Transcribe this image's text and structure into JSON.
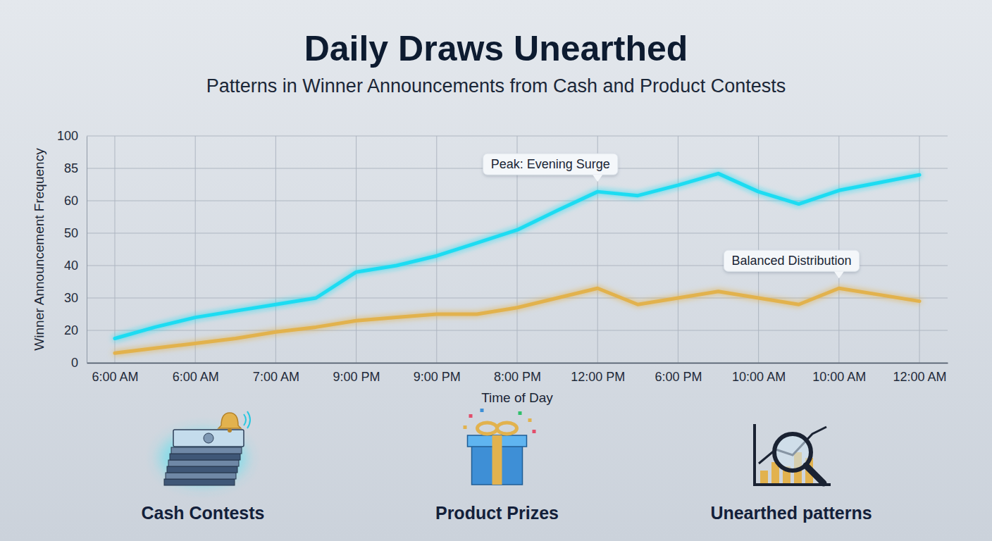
{
  "chart_data": {
    "type": "line",
    "title": "Daily Draws Unearthed",
    "subtitle": "Patterns in Winner Announcements from Cash and Product Contests",
    "x_label": "Time of Day",
    "y_label": "Winner Announcement Frequency",
    "categories": [
      "6:00 AM",
      null,
      "6:00 AM",
      null,
      "7:00 AM",
      null,
      "9:00 PM",
      null,
      "9:00 PM",
      null,
      "8:00 PM",
      null,
      "12:00 PM",
      null,
      "6:00 PM",
      null,
      "10:00 AM",
      null,
      "10:00 AM",
      null,
      "12:00 AM"
    ],
    "series": [
      {
        "name": "Cash Contests",
        "color": "#1fdcf2",
        "values": [
          15,
          21,
          24,
          26,
          28,
          30,
          38,
          40,
          43,
          47,
          51,
          57,
          67,
          64,
          72,
          81,
          67,
          59,
          68,
          74,
          80
        ]
      },
      {
        "name": "Product Prizes",
        "color": "#e2b24e",
        "values": [
          6,
          9,
          12,
          15,
          19,
          21,
          23,
          24,
          25,
          25,
          27,
          30,
          33,
          28,
          30,
          32,
          30,
          28,
          33,
          31,
          29
        ]
      }
    ],
    "ylim": [
      0,
      100
    ],
    "yticks": [
      0,
      20,
      30,
      40,
      50,
      60,
      85,
      100
    ],
    "grid": true,
    "legend": "bottom",
    "annotations": [
      {
        "text": "Peak: Evening Surge",
        "x": 12,
        "y": 67
      },
      {
        "text": "Balanced Distribution",
        "x": 18,
        "y": 33
      },
      {
        "text": "Unearthed patterns"
      }
    ]
  }
}
